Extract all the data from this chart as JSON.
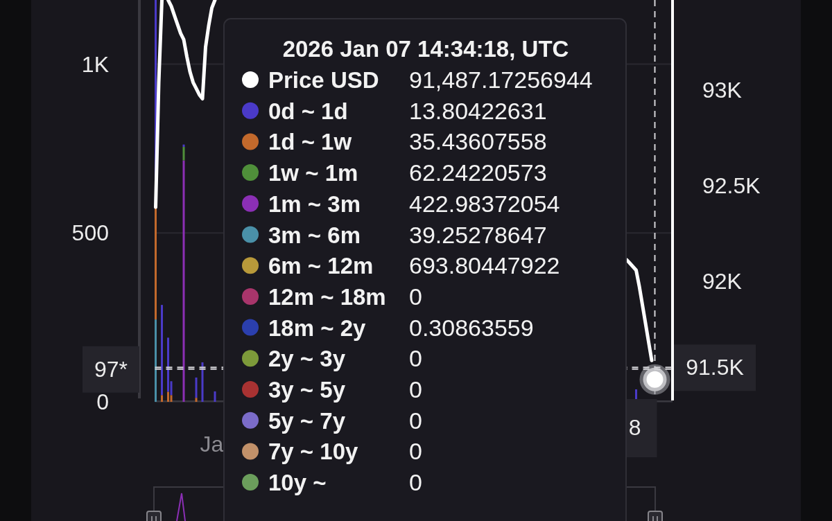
{
  "chart_data": [
    {
      "type": "bar",
      "stacked": true,
      "categories": [
        null,
        null,
        null,
        null,
        null,
        null,
        null,
        null,
        null,
        null,
        null,
        null,
        null,
        null,
        null,
        null,
        null,
        null,
        "Ja",
        null,
        null,
        null,
        null,
        null,
        null,
        null,
        null,
        null,
        null,
        null,
        null,
        null,
        null,
        null,
        null,
        null,
        null,
        null,
        null,
        null,
        null,
        null,
        null,
        null,
        null,
        null,
        null,
        null,
        null,
        null,
        null,
        null,
        null,
        null,
        null,
        null,
        null,
        null,
        null,
        null,
        null,
        null,
        null,
        null,
        null,
        null,
        null,
        null,
        null,
        null,
        null,
        null,
        null,
        null,
        null,
        null,
        null,
        null,
        null,
        null,
        null,
        null,
        null,
        null,
        null,
        null,
        null,
        null,
        null,
        null,
        null,
        null,
        null,
        null,
        null,
        null,
        null,
        null,
        null,
        null,
        null,
        null,
        null,
        null,
        null,
        null,
        null,
        null,
        null,
        null,
        null,
        null,
        null,
        null,
        null,
        null,
        null,
        null,
        null,
        null,
        null,
        null,
        null,
        null,
        null,
        null,
        null,
        null,
        null,
        null,
        null,
        null,
        null,
        null,
        null,
        null,
        null,
        null,
        null,
        null,
        null,
        null,
        null,
        null,
        null,
        null,
        null,
        null,
        null,
        null,
        null,
        null,
        null,
        null,
        null,
        null,
        null,
        null,
        null,
        null,
        null,
        null,
        null,
        null,
        null,
        null
      ],
      "series": [
        {
          "color": "#4a90a8",
          "values": [
            244,
            null,
            null,
            null,
            null,
            null,
            null,
            null,
            null,
            null,
            null,
            null,
            null,
            null,
            null,
            null,
            null,
            null,
            null,
            null,
            null,
            null,
            null,
            null,
            null,
            null,
            null,
            null,
            null,
            null,
            null,
            null,
            null,
            null,
            null,
            null,
            null,
            null,
            null,
            null,
            null,
            null,
            null,
            null,
            null,
            null,
            null,
            null,
            null,
            null,
            null,
            null,
            null,
            null,
            null,
            null,
            null,
            null,
            null,
            null,
            null,
            null,
            null,
            null,
            null,
            null,
            null,
            null,
            null,
            null,
            null,
            null,
            null,
            null,
            null,
            null,
            null,
            null,
            null,
            null,
            null,
            null,
            null,
            null,
            null,
            null,
            null,
            null,
            null,
            null,
            null,
            null,
            null,
            null,
            null,
            null,
            null,
            null,
            null,
            null,
            null,
            null,
            null,
            null,
            null,
            null,
            null,
            null,
            null,
            null,
            null,
            null,
            null,
            null,
            null,
            null,
            null,
            null,
            null,
            null,
            null,
            null,
            null,
            null,
            null,
            null,
            null,
            null,
            null,
            null,
            null,
            null,
            null,
            null,
            null,
            null,
            null,
            null,
            null,
            null,
            null,
            null,
            null,
            null,
            null,
            null,
            null,
            null,
            null,
            null,
            null,
            null,
            null,
            null,
            null,
            null,
            null,
            null,
            null,
            null,
            null,
            null,
            null,
            null,
            null,
            null
          ]
        },
        {
          "color": "#8b2fb5",
          "values": [
            null,
            null,
            null,
            null,
            null,
            null,
            null,
            null,
            null,
            715,
            null,
            null,
            null,
            null,
            null,
            null,
            null,
            null,
            null,
            null,
            null,
            null,
            null,
            null,
            null,
            null,
            null,
            null,
            null,
            null,
            null,
            null,
            null,
            null,
            null,
            null,
            null,
            null,
            null,
            null,
            null,
            null,
            null,
            null,
            null,
            null,
            null,
            null,
            null,
            null,
            null,
            null,
            null,
            null,
            null,
            null,
            null,
            null,
            null,
            null,
            null,
            null,
            null,
            null,
            null,
            null,
            null,
            null,
            null,
            null,
            null,
            null,
            null,
            null,
            null,
            null,
            null,
            null,
            null,
            null,
            null,
            null,
            null,
            null,
            null,
            null,
            null,
            null,
            null,
            null,
            null,
            null,
            null,
            null,
            null,
            null,
            null,
            null,
            null,
            null,
            null,
            null,
            null,
            null,
            null,
            null,
            null,
            null,
            null,
            null,
            null,
            null,
            null,
            null,
            null,
            null,
            null,
            null,
            null,
            null,
            null,
            null,
            null,
            null,
            null,
            null,
            null,
            null,
            null,
            null,
            null,
            null,
            null,
            null,
            null,
            null,
            null,
            null,
            null,
            null,
            null,
            null,
            null,
            null,
            null,
            null,
            null,
            null,
            null,
            null,
            null,
            null,
            null,
            null,
            null,
            null,
            null,
            null,
            null,
            null,
            null,
            null,
            null,
            null,
            null,
            null
          ]
        },
        {
          "color": "#4f8f3a",
          "values": [
            null,
            null,
            null,
            null,
            null,
            null,
            null,
            null,
            null,
            40,
            null,
            null,
            null,
            null,
            null,
            null,
            null,
            null,
            null,
            null,
            null,
            null,
            null,
            null,
            null,
            null,
            null,
            null,
            null,
            null,
            null,
            null,
            null,
            null,
            null,
            null,
            null,
            null,
            null,
            null,
            null,
            null,
            null,
            null,
            null,
            null,
            null,
            null,
            null,
            null,
            null,
            null,
            null,
            null,
            null,
            null,
            null,
            null,
            null,
            null,
            null,
            null,
            null,
            null,
            null,
            null,
            null,
            null,
            null,
            null,
            null,
            null,
            null,
            null,
            null,
            null,
            null,
            null,
            null,
            null,
            null,
            null,
            null,
            null,
            null,
            null,
            null,
            null,
            null,
            null,
            null,
            null,
            null,
            null,
            null,
            null,
            null,
            null,
            null,
            null,
            null,
            null,
            null,
            null,
            null,
            null,
            null,
            null,
            null,
            null,
            null,
            null,
            null,
            null,
            null,
            null,
            null,
            null,
            null,
            null,
            null,
            null,
            null,
            null,
            null,
            null,
            null,
            null,
            null,
            null,
            null,
            null,
            null,
            null,
            null,
            null,
            null,
            null,
            null,
            null,
            null,
            null,
            null,
            null,
            null,
            null,
            null,
            null,
            null,
            null,
            null,
            null,
            null,
            null,
            null,
            null,
            null,
            null,
            null,
            null,
            null,
            null,
            null,
            null,
            null,
            null
          ]
        },
        {
          "color": "#c2692c",
          "values": [
            330,
            null,
            20,
            null,
            30,
            20,
            null,
            null,
            null,
            null,
            null,
            null,
            null,
            12,
            null,
            null,
            null,
            null,
            null,
            null,
            null,
            null,
            null,
            null,
            null,
            null,
            null,
            null,
            null,
            null,
            null,
            null,
            null,
            null,
            null,
            null,
            null,
            null,
            null,
            null,
            null,
            null,
            null,
            null,
            null,
            null,
            null,
            null,
            null,
            null,
            null,
            null,
            null,
            null,
            null,
            null,
            null,
            null,
            null,
            null,
            null,
            null,
            null,
            null,
            null,
            null,
            null,
            null,
            null,
            null,
            null,
            null,
            null,
            null,
            null,
            null,
            null,
            null,
            null,
            null,
            null,
            null,
            null,
            null,
            null,
            null,
            null,
            null,
            null,
            null,
            null,
            null,
            null,
            null,
            null,
            null,
            null,
            null,
            null,
            null,
            null,
            null,
            null,
            null,
            null,
            null,
            null,
            null,
            null,
            null,
            null,
            null,
            null,
            null,
            null,
            null,
            null,
            null,
            null,
            null,
            null,
            null,
            null,
            null,
            null,
            null,
            null,
            null,
            null,
            null,
            null,
            null,
            null,
            null,
            null,
            null,
            null,
            null,
            null,
            null,
            null,
            null,
            null,
            null,
            null,
            null,
            null,
            null,
            null,
            null,
            null,
            null,
            null,
            null,
            null,
            null,
            null,
            null,
            null,
            null,
            null,
            null,
            null,
            null,
            null,
            null
          ]
        },
        {
          "color": "#4a3ac8",
          "values": [
            616,
            null,
            267,
            null,
            160,
            41,
            null,
            null,
            null,
            7,
            null,
            null,
            null,
            60,
            null,
            117,
            null,
            null,
            null,
            31,
            null,
            null,
            null,
            null,
            null,
            null,
            null,
            null,
            null,
            null,
            null,
            null,
            null,
            null,
            null,
            null,
            null,
            null,
            null,
            null,
            null,
            null,
            null,
            null,
            null,
            null,
            null,
            null,
            null,
            null,
            null,
            null,
            null,
            null,
            null,
            null,
            null,
            null,
            null,
            null,
            null,
            null,
            null,
            null,
            null,
            null,
            null,
            null,
            null,
            null,
            null,
            null,
            null,
            null,
            null,
            null,
            null,
            null,
            null,
            null,
            null,
            null,
            null,
            null,
            null,
            null,
            null,
            null,
            null,
            null,
            null,
            null,
            null,
            null,
            null,
            null,
            null,
            null,
            null,
            null,
            null,
            null,
            null,
            null,
            null,
            null,
            null,
            null,
            null,
            null,
            null,
            null,
            null,
            null,
            null,
            null,
            null,
            null,
            null,
            null,
            null,
            null,
            null,
            null,
            null,
            null,
            null,
            null,
            null,
            null,
            null,
            null,
            null,
            null,
            null,
            null,
            null,
            null,
            null,
            null,
            null,
            null,
            null,
            null,
            null,
            null,
            null,
            null,
            null,
            null,
            null,
            null,
            null,
            null,
            37,
            null,
            null,
            null,
            null,
            null,
            null,
            null,
            null,
            null,
            null,
            null
          ]
        },
        {
          "type": "line",
          "axis": "y2",
          "color": "#ffffff",
          "values": [
            92387,
            93039,
            93470,
            null,
            93470,
            93438,
            93390,
            93343,
            93296,
            93263,
            93174,
            93095,
            93040,
            93008,
            92975,
            92954,
            93224,
            93336,
            93428,
            93470,
            null,
            null,
            null,
            null,
            null,
            null,
            null,
            null,
            null,
            null,
            null,
            null,
            null,
            null,
            null,
            null,
            null,
            null,
            null,
            null,
            null,
            null,
            null,
            null,
            null,
            null,
            null,
            null,
            null,
            null,
            null,
            null,
            null,
            null,
            null,
            null,
            null,
            null,
            null,
            null,
            null,
            null,
            null,
            null,
            null,
            null,
            null,
            null,
            null,
            null,
            null,
            null,
            null,
            null,
            null,
            null,
            null,
            null,
            null,
            null,
            null,
            null,
            null,
            null,
            null,
            null,
            null,
            null,
            null,
            null,
            null,
            null,
            null,
            null,
            null,
            null,
            null,
            null,
            null,
            null,
            null,
            null,
            null,
            null,
            null,
            null,
            null,
            null,
            null,
            null,
            null,
            null,
            null,
            null,
            null,
            null,
            null,
            null,
            null,
            null,
            null,
            null,
            null,
            null,
            null,
            null,
            null,
            null,
            null,
            null,
            null,
            null,
            null,
            null,
            null,
            null,
            null,
            null,
            null,
            null,
            null,
            null,
            null,
            null,
            null,
            null,
            null,
            null,
            null,
            null,
            null,
            92112,
            92094,
            92076,
            92058,
            91975,
            91878,
            91781,
            91683,
            91586,
            null,
            null,
            null,
            null,
            null,
            null
          ]
        },
        {
          "type": "scatter",
          "axis": "y2",
          "color": "#ffffff",
          "marker": "circle",
          "values": [
            null,
            null,
            null,
            null,
            null,
            null,
            null,
            null,
            null,
            null,
            null,
            null,
            null,
            null,
            null,
            null,
            null,
            null,
            null,
            null,
            null,
            null,
            null,
            null,
            null,
            null,
            null,
            null,
            null,
            null,
            null,
            null,
            null,
            null,
            null,
            null,
            null,
            null,
            null,
            null,
            null,
            null,
            null,
            null,
            null,
            null,
            null,
            null,
            null,
            null,
            null,
            null,
            null,
            null,
            null,
            null,
            null,
            null,
            null,
            null,
            null,
            null,
            null,
            null,
            null,
            null,
            null,
            null,
            null,
            null,
            null,
            null,
            null,
            null,
            null,
            null,
            null,
            null,
            null,
            null,
            null,
            null,
            null,
            null,
            null,
            null,
            null,
            null,
            null,
            null,
            null,
            null,
            null,
            null,
            null,
            null,
            null,
            null,
            null,
            null,
            null,
            null,
            null,
            null,
            null,
            null,
            null,
            null,
            null,
            null,
            null,
            null,
            null,
            null,
            null,
            null,
            null,
            null,
            null,
            null,
            null,
            null,
            null,
            null,
            null,
            null,
            null,
            null,
            null,
            null,
            null,
            null,
            null,
            null,
            null,
            null,
            null,
            null,
            null,
            null,
            null,
            null,
            null,
            null,
            null,
            null,
            null,
            null,
            null,
            null,
            null,
            null,
            null,
            null,
            null,
            null,
            null,
            null,
            null,
            null,
            91487,
            null,
            null,
            null,
            null,
            null
          ]
        }
      ],
      "ylim": [
        0,
        1190
      ],
      "yticks": [
        0,
        500,
        {
          "value": 1000,
          "label": "1K"
        }
      ],
      "y2lim": [
        91370,
        93470
      ],
      "y2ticks": [
        {
          "value": 92000,
          "label": "92K"
        },
        {
          "value": 92500,
          "label": "92.5K"
        },
        {
          "value": 93000,
          "label": "93K"
        }
      ],
      "grid": "y",
      "ref_lines": [
        {
          "axis": "y",
          "value": 97,
          "label": "97*",
          "line_style": "dashed"
        },
        {
          "axis": "y2",
          "value": 91550,
          "label": "91.5K",
          "line_style": "dashed"
        }
      ],
      "annotations": [
        "8"
      ]
    },
    {
      "type": "other",
      "title": "2026 Jan 07 14:34:18, UTC",
      "categories": [
        "Price USD",
        "0d ~ 1d",
        "1d ~ 1w",
        "1w ~ 1m",
        "1m ~ 3m",
        "3m ~ 6m",
        "6m ~ 12m",
        "12m ~ 18m",
        "18m ~ 2y",
        "2y ~ 3y",
        "3y ~ 5y",
        "5y ~ 7y",
        "7y ~ 10y",
        "10y ~"
      ],
      "value_labels": [
        "91,487.17256944",
        "13.80422631",
        "35.43607558",
        "62.24220573",
        "422.98372054",
        "39.25278647",
        "693.80447922",
        "0",
        "0.30863559",
        "0",
        "0",
        "0",
        "0",
        "0"
      ],
      "colors": [
        "#ffffff",
        "#4a3ac8",
        "#c2692c",
        "#4f8f3a",
        "#8b2fb5",
        "#4a90a8",
        "#b8993a",
        "#a8356b",
        "#2b3fae",
        "#7d9a3a",
        "#a83232",
        "#7b6cc9",
        "#c2916a",
        "#6b9e5c"
      ]
    }
  ]
}
